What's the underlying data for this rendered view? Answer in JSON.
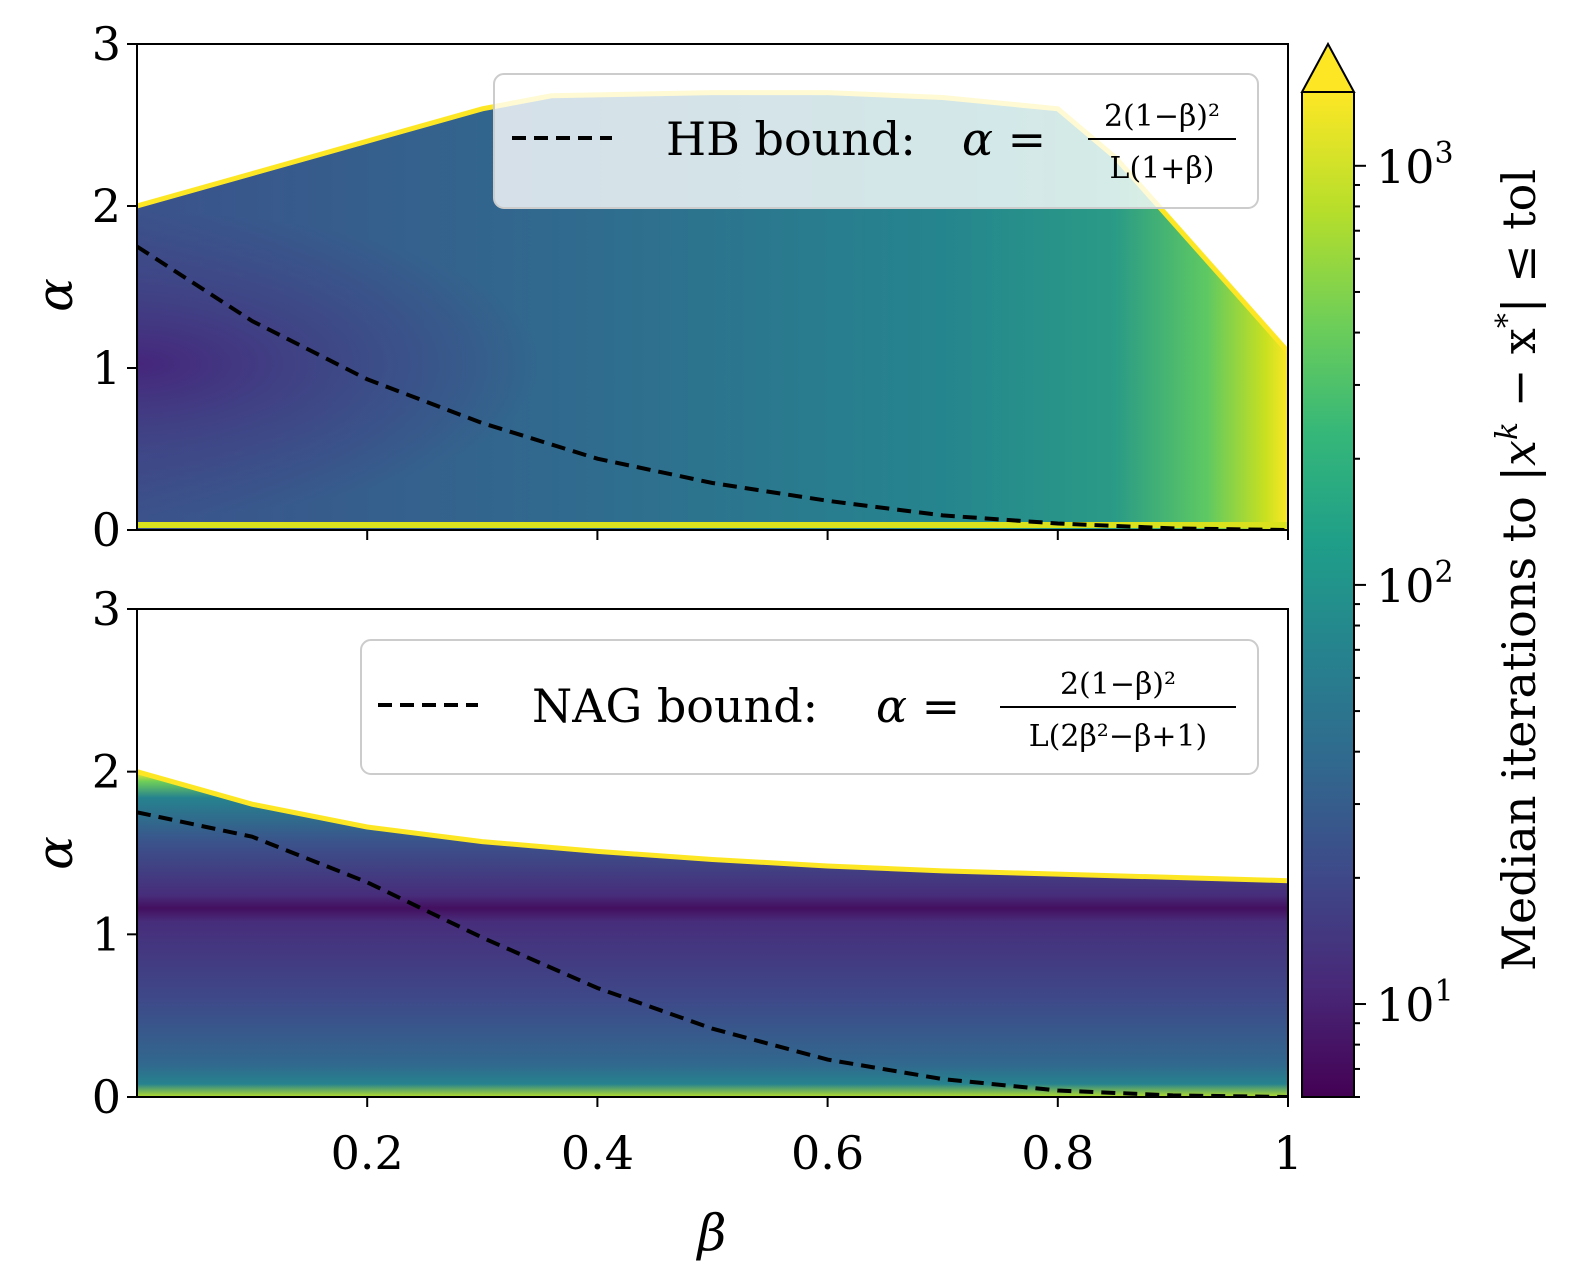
{
  "chart_data": [
    {
      "type": "heatmap",
      "panel": "top",
      "xlim": [
        0,
        1
      ],
      "ylim": [
        0,
        3
      ],
      "ylabel": "α",
      "yticks": [
        "0",
        "1",
        "2",
        "3"
      ],
      "legend": {
        "placement": "top-right",
        "label": "HB bound: ",
        "formula_lhs": "α =",
        "numerator": "2(1−β)²",
        "denominator": "L(1+β)",
        "line_style": "dashed"
      },
      "bound_curve": {
        "beta": [
          0,
          0.1,
          0.2,
          0.3,
          0.4,
          0.5,
          0.6,
          0.7,
          0.8,
          0.9,
          1.0
        ],
        "alpha": [
          1.75,
          1.29,
          0.93,
          0.66,
          0.44,
          0.29,
          0.18,
          0.09,
          0.04,
          0.01,
          0.0
        ]
      },
      "stable_region_upper": {
        "beta": [
          0,
          0.1,
          0.2,
          0.3,
          0.36,
          0.5,
          0.6,
          0.7,
          0.8,
          0.85,
          0.9,
          0.95,
          1.0
        ],
        "alpha": [
          2.0,
          2.2,
          2.4,
          2.6,
          2.68,
          2.7,
          2.7,
          2.67,
          2.6,
          2.3,
          1.9,
          1.5,
          1.1
        ]
      }
    },
    {
      "type": "heatmap",
      "panel": "bottom",
      "xlim": [
        0,
        1
      ],
      "ylim": [
        0,
        3
      ],
      "xlabel": "β",
      "ylabel": "α",
      "xticks": [
        "0.2",
        "0.4",
        "0.6",
        "0.8",
        "1"
      ],
      "yticks": [
        "0",
        "1",
        "2",
        "3"
      ],
      "legend": {
        "placement": "top-right",
        "label": "NAG bound: ",
        "formula_lhs": "α =",
        "numerator": "2(1−β)²",
        "denominator": "L(2β²−β+1)",
        "line_style": "dashed"
      },
      "bound_curve": {
        "beta": [
          0,
          0.1,
          0.2,
          0.3,
          0.4,
          0.5,
          0.6,
          0.7,
          0.8,
          0.9,
          1.0
        ],
        "alpha": [
          1.75,
          1.6,
          1.32,
          0.98,
          0.67,
          0.42,
          0.23,
          0.11,
          0.04,
          0.01,
          0.0
        ]
      },
      "stable_region_upper": {
        "beta": [
          0,
          0.1,
          0.2,
          0.3,
          0.4,
          0.5,
          0.6,
          0.7,
          0.8,
          0.9,
          1.0
        ],
        "alpha": [
          2.0,
          1.8,
          1.66,
          1.57,
          1.51,
          1.46,
          1.42,
          1.39,
          1.37,
          1.35,
          1.33
        ]
      }
    }
  ],
  "colorbar": {
    "scale": "log",
    "range": [
      6,
      1500
    ],
    "ticks": [
      {
        "value": 10,
        "base": "10",
        "exp": "1"
      },
      {
        "value": 100,
        "base": "10",
        "exp": "2"
      },
      {
        "value": 1000,
        "base": "10",
        "exp": "3"
      }
    ],
    "colormap": "viridis",
    "extend": "max",
    "label_prefix": "Median iterations to ",
    "label_math": "|x",
    "label_sup1": "k",
    "label_mid": " − x",
    "label_sup2": "*",
    "label_suffix": "| ≤ tol"
  },
  "colors": {
    "viridis": [
      "#440154",
      "#482878",
      "#3e4989",
      "#31688e",
      "#26828e",
      "#1f9e89",
      "#35b779",
      "#6ece58",
      "#b5de2b",
      "#fde725"
    ],
    "curve": "#000000",
    "background": "#ffffff"
  }
}
